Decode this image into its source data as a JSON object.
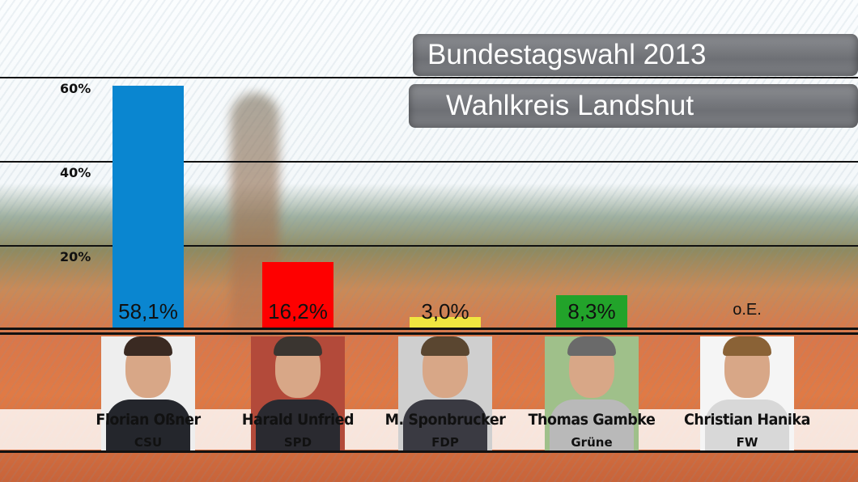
{
  "header": {
    "title": "Bundestagswahl 2013",
    "subtitle": "Wahlkreis Landshut"
  },
  "chart_data": {
    "type": "bar",
    "title": "Bundestagswahl 2013",
    "subtitle": "Wahlkreis Landshut",
    "categories": [
      "Florian Oßner",
      "Harald Unfried",
      "M. Sponbrucker",
      "Thomas Gambke",
      "Christian Hanika"
    ],
    "parties": [
      "CSU",
      "SPD",
      "FDP",
      "Grüne",
      "FW"
    ],
    "values": [
      58.1,
      16.2,
      3.0,
      8.3,
      null
    ],
    "value_labels": [
      "58,1%",
      "16,2%",
      "3,0%",
      "8,3%",
      "o.E."
    ],
    "colors": [
      "#0a86d0",
      "#fe0000",
      "#f0e640",
      "#22a32a",
      null
    ],
    "yticks": [
      {
        "v": 20,
        "label": "20%"
      },
      {
        "v": 40,
        "label": "40%"
      },
      {
        "v": 60,
        "label": "60%"
      }
    ],
    "ylim": [
      0,
      60
    ],
    "grid": true
  }
}
